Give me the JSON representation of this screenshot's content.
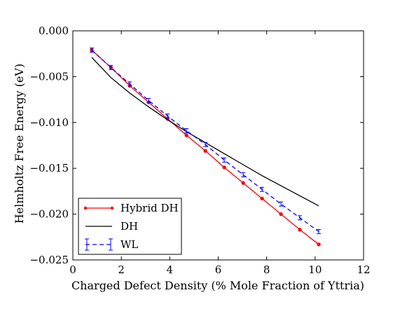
{
  "chart_data": {
    "type": "line",
    "title": "",
    "xlabel": "Charged Defect Density (% Mole Fraction of Yttria)",
    "ylabel": "Helmholtz Free Energy (eV)",
    "xlim": [
      0,
      12
    ],
    "ylim": [
      -0.025,
      0.0
    ],
    "x_ticks": [
      0,
      2,
      4,
      6,
      8,
      10,
      12
    ],
    "x_tick_labels": [
      "0",
      "2",
      "4",
      "6",
      "8",
      "10",
      "12"
    ],
    "y_ticks": [
      0.0,
      -0.005,
      -0.01,
      -0.015,
      -0.02,
      -0.025
    ],
    "y_tick_labels": [
      "0.000",
      "−0.005",
      "−0.010",
      "−0.015",
      "−0.020",
      "−0.025"
    ],
    "grid": false,
    "legend_position": "lower-left",
    "series": [
      {
        "name": "Hybrid DH",
        "color": "#ff0000",
        "line_style": "solid",
        "marker": "dot",
        "x": [
          0.78,
          1.57,
          2.35,
          3.13,
          3.91,
          4.69,
          5.47,
          6.25,
          7.03,
          7.81,
          8.59,
          9.37,
          10.15
        ],
        "y": [
          -0.0021,
          -0.004,
          -0.006,
          -0.0078,
          -0.0096,
          -0.0114,
          -0.0131,
          -0.0149,
          -0.0166,
          -0.0183,
          -0.02,
          -0.0217,
          -0.0233
        ]
      },
      {
        "name": "DH",
        "color": "#000000",
        "line_style": "solid",
        "marker": "none",
        "x": [
          0.78,
          1.57,
          2.35,
          3.13,
          3.91,
          4.69,
          5.47,
          6.25,
          7.03,
          7.81,
          8.59,
          9.37,
          10.15
        ],
        "y": [
          -0.0029,
          -0.0051,
          -0.0068,
          -0.0083,
          -0.0097,
          -0.011,
          -0.0122,
          -0.0134,
          -0.0146,
          -0.0158,
          -0.0169,
          -0.018,
          -0.0191
        ]
      },
      {
        "name": "WL",
        "color": "#0000ff",
        "line_style": "dashed",
        "marker": "errorbar",
        "x": [
          0.78,
          1.57,
          2.35,
          3.13,
          3.91,
          4.69,
          5.47,
          6.25,
          7.03,
          7.81,
          8.59,
          9.37,
          10.15
        ],
        "y": [
          -0.0021,
          -0.004,
          -0.0058,
          -0.0076,
          -0.0093,
          -0.0109,
          -0.0124,
          -0.0141,
          -0.0157,
          -0.0173,
          -0.0189,
          -0.0204,
          -0.0219
        ]
      }
    ]
  }
}
